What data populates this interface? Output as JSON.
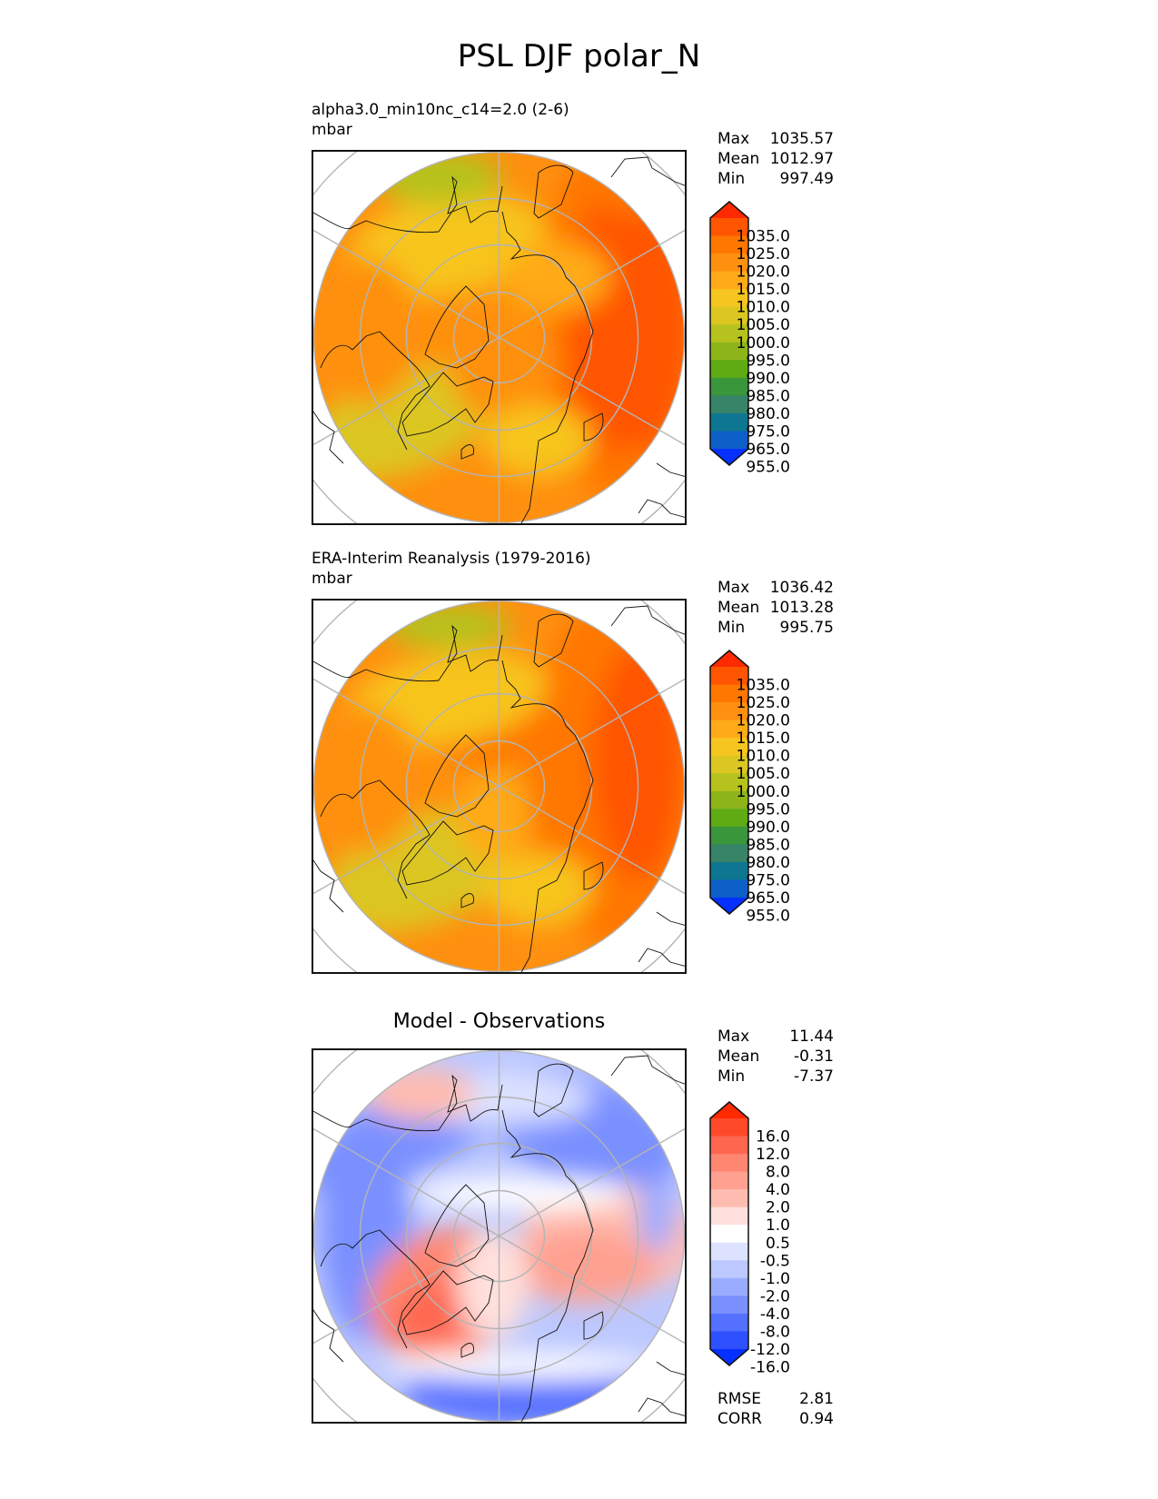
{
  "figure": {
    "title": "PSL DJF polar_N"
  },
  "panels": [
    {
      "id": "test",
      "title": "alpha3.0_min10nc_c14=2.0 (2-6)",
      "units": "mbar",
      "stats": [
        {
          "label": "Max",
          "value": "1035.57"
        },
        {
          "label": "Mean",
          "value": "1012.97"
        },
        {
          "label": "Min",
          "value": "997.49"
        }
      ]
    },
    {
      "id": "reference",
      "title": "ERA-Interim Reanalysis (1979-2016)",
      "units": "mbar",
      "stats": [
        {
          "label": "Max",
          "value": "1036.42"
        },
        {
          "label": "Mean",
          "value": "1013.28"
        },
        {
          "label": "Min",
          "value": "995.75"
        }
      ]
    },
    {
      "id": "diff",
      "title": "Model - Observations",
      "units": "",
      "stats": [
        {
          "label": "Max",
          "value": "11.44"
        },
        {
          "label": "Mean",
          "value": "-0.31"
        },
        {
          "label": "Min",
          "value": "-7.37"
        }
      ],
      "metrics": [
        {
          "label": "RMSE",
          "value": "2.81"
        },
        {
          "label": "CORR",
          "value": "0.94"
        }
      ]
    }
  ],
  "chart_data": [
    {
      "type": "heatmap",
      "title": "alpha3.0_min10nc_c14=2.0 (2-6)",
      "subtitle": "mbar",
      "projection": "north polar stereographic",
      "variable": "PSL",
      "season": "DJF",
      "colorbar": {
        "levels": [
          "1035.0",
          "1025.0",
          "1020.0",
          "1015.0",
          "1010.0",
          "1005.0",
          "1000.0",
          "995.0",
          "990.0",
          "985.0",
          "980.0",
          "975.0",
          "965.0",
          "955.0"
        ],
        "colors": [
          "#ff2a00",
          "#ff5500",
          "#ff7700",
          "#ff9010",
          "#ffaa18",
          "#f7c51f",
          "#dcc622",
          "#b6c21d",
          "#8db51a",
          "#5eab14",
          "#3a963a",
          "#388469",
          "#0e7690",
          "#0d5fc8",
          "#0530ff"
        ],
        "extend": "both"
      },
      "summary": {
        "max": 1035.57,
        "mean": 1012.97,
        "min": 997.49
      }
    },
    {
      "type": "heatmap",
      "title": "ERA-Interim Reanalysis (1979-2016)",
      "subtitle": "mbar",
      "projection": "north polar stereographic",
      "variable": "PSL",
      "season": "DJF",
      "colorbar": {
        "levels": [
          "1035.0",
          "1025.0",
          "1020.0",
          "1015.0",
          "1010.0",
          "1005.0",
          "1000.0",
          "995.0",
          "990.0",
          "985.0",
          "980.0",
          "975.0",
          "965.0",
          "955.0"
        ],
        "colors": [
          "#ff2a00",
          "#ff5500",
          "#ff7700",
          "#ff9010",
          "#ffaa18",
          "#f7c51f",
          "#dcc622",
          "#b6c21d",
          "#8db51a",
          "#5eab14",
          "#3a963a",
          "#388469",
          "#0e7690",
          "#0d5fc8",
          "#0530ff"
        ],
        "extend": "both"
      },
      "summary": {
        "max": 1036.42,
        "mean": 1013.28,
        "min": 995.75
      }
    },
    {
      "type": "heatmap",
      "title": "Model - Observations",
      "projection": "north polar stereographic",
      "colorbar": {
        "levels": [
          "16.0",
          "12.0",
          "8.0",
          "4.0",
          "2.0",
          "1.0",
          "0.5",
          "-0.5",
          "-1.0",
          "-2.0",
          "-4.0",
          "-8.0",
          "-12.0",
          "-16.0"
        ],
        "colors": [
          "#ff2a00",
          "#ff4a2a",
          "#ff6650",
          "#ff8670",
          "#ffa090",
          "#ffbcb0",
          "#ffe0dc",
          "#ffffff",
          "#dce2ff",
          "#bcc8ff",
          "#9aacff",
          "#7a90ff",
          "#5470ff",
          "#2f50ff",
          "#0530ff"
        ],
        "extend": "both"
      },
      "summary": {
        "max": 11.44,
        "mean": -0.31,
        "min": -7.37,
        "rmse": 2.81,
        "corr": 0.94
      }
    }
  ]
}
